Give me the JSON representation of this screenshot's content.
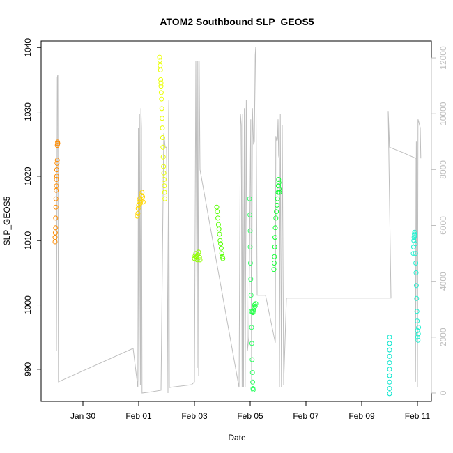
{
  "chart_data": {
    "type": "scatter",
    "title": "ATOM2 Southbound SLP_GEOS5",
    "xlabel": "Date",
    "ylabel": "SLP_GEOS5",
    "xlim": [
      28.5,
      42.5
    ],
    "ylim": [
      985,
      1041
    ],
    "y2lim": [
      -300,
      12600
    ],
    "x_ticks": [
      {
        "value": 30,
        "label": "Jan 30"
      },
      {
        "value": 32,
        "label": "Feb 01"
      },
      {
        "value": 34,
        "label": "Feb 03"
      },
      {
        "value": 36,
        "label": "Feb 05"
      },
      {
        "value": 38,
        "label": "Feb 07"
      },
      {
        "value": 40,
        "label": "Feb 09"
      },
      {
        "value": 42,
        "label": "Feb 11"
      }
    ],
    "y_ticks": [
      990,
      1000,
      1010,
      1020,
      1030,
      1040
    ],
    "y2_ticks": [
      0,
      2000,
      4000,
      6000,
      8000,
      10000,
      12000
    ],
    "colors": {
      "axis": "#000000",
      "altitude_line": "#bebebe",
      "y2_axis": "#bebebe"
    },
    "altitude_profile": [
      [
        29.05,
        1500
      ],
      [
        29.08,
        11300
      ],
      [
        29.1,
        11400
      ],
      [
        29.12,
        400
      ],
      [
        31.8,
        1600
      ],
      [
        31.97,
        200
      ],
      [
        31.99,
        9500
      ],
      [
        32.01,
        400
      ],
      [
        32.03,
        10000
      ],
      [
        32.06,
        300
      ],
      [
        32.08,
        10200
      ],
      [
        32.1,
        9500
      ],
      [
        32.12,
        0
      ],
      [
        32.5,
        50
      ],
      [
        32.8,
        100
      ],
      [
        32.9,
        9300
      ],
      [
        32.95,
        8800
      ],
      [
        33.0,
        8800
      ],
      [
        33.05,
        0
      ],
      [
        33.07,
        9800
      ],
      [
        33.08,
        10500
      ],
      [
        33.1,
        200
      ],
      [
        33.9,
        300
      ],
      [
        34.0,
        400
      ],
      [
        34.05,
        11900
      ],
      [
        34.1,
        900
      ],
      [
        34.12,
        11900
      ],
      [
        34.15,
        600
      ],
      [
        34.17,
        11900
      ],
      [
        34.2,
        8000
      ],
      [
        35.6,
        200
      ],
      [
        35.65,
        10000
      ],
      [
        35.68,
        9600
      ],
      [
        35.71,
        200
      ],
      [
        35.73,
        10000
      ],
      [
        35.76,
        200
      ],
      [
        35.79,
        10200
      ],
      [
        35.82,
        200
      ],
      [
        35.86,
        10500
      ],
      [
        35.9,
        1500
      ],
      [
        35.95,
        2000
      ],
      [
        36.02,
        9800
      ],
      [
        36.05,
        300
      ],
      [
        36.08,
        10200
      ],
      [
        36.12,
        8900
      ],
      [
        36.15,
        9000
      ],
      [
        36.18,
        12100
      ],
      [
        36.2,
        12400
      ],
      [
        36.25,
        3500
      ],
      [
        36.55,
        3500
      ],
      [
        36.9,
        1800
      ],
      [
        36.92,
        9200
      ],
      [
        36.96,
        9000
      ],
      [
        36.98,
        9100
      ],
      [
        37.0,
        9800
      ],
      [
        37.02,
        8500
      ],
      [
        37.04,
        8400
      ],
      [
        37.05,
        200
      ],
      [
        37.08,
        10000
      ],
      [
        37.12,
        200
      ],
      [
        37.15,
        9600
      ],
      [
        37.2,
        300
      ],
      [
        37.3,
        3400
      ],
      [
        41.0,
        3400
      ],
      [
        41.05,
        3400
      ],
      [
        40.95,
        10100
      ],
      [
        41.0,
        8800
      ],
      [
        41.5,
        8600
      ],
      [
        41.95,
        8400
      ],
      [
        41.93,
        400
      ],
      [
        41.96,
        9000
      ],
      [
        42.0,
        200
      ],
      [
        42.02,
        9800
      ],
      [
        42.05,
        9700
      ],
      [
        42.1,
        9500
      ],
      [
        42.12,
        8400
      ]
    ],
    "series": [
      {
        "name": "",
        "color": "#ff8c00",
        "x": [
          29.0,
          29.0,
          29.01,
          29.02,
          29.02,
          29.03,
          29.03,
          29.04,
          29.05,
          29.05,
          29.06,
          29.06,
          29.07,
          29.08,
          29.08,
          29.09,
          29.09,
          29.1
        ],
        "y": [
          1009.8,
          1010.5,
          1011.2,
          1012.0,
          1013.5,
          1015.2,
          1016.5,
          1017.8,
          1018.5,
          1019.5,
          1020.0,
          1021.0,
          1022.0,
          1022.5,
          1024.8,
          1025.0,
          1025.3,
          1025.1
        ]
      },
      {
        "name": "",
        "color": "#ffd700",
        "x": [
          31.95,
          31.97,
          31.98,
          32.0,
          32.02,
          32.04,
          32.06,
          32.08,
          32.1,
          32.12,
          32.14,
          32.16
        ],
        "y": [
          1013.8,
          1014.2,
          1015.0,
          1015.5,
          1016.0,
          1016.5,
          1015.8,
          1016.2,
          1017.0,
          1017.5,
          1016.8,
          1016.0
        ]
      },
      {
        "name": "",
        "color": "#eaff00",
        "x": [
          32.75,
          32.76,
          32.77,
          32.78,
          32.79,
          32.8,
          32.8,
          32.81,
          32.82,
          32.83,
          32.84,
          32.85,
          32.86,
          32.87,
          32.88,
          32.89,
          32.9,
          32.91,
          32.92,
          32.93,
          32.94
        ],
        "y": [
          1038.5,
          1038.0,
          1037.2,
          1036.5,
          1035.0,
          1034.5,
          1034.0,
          1033.0,
          1032.0,
          1030.5,
          1029.0,
          1027.5,
          1026.0,
          1024.5,
          1023.0,
          1021.5,
          1020.5,
          1019.5,
          1018.5,
          1017.5,
          1016.5
        ]
      },
      {
        "name": "",
        "color": "#90ff00",
        "x": [
          34.0,
          34.02,
          34.05,
          34.08,
          34.1,
          34.12,
          34.15,
          34.18,
          34.2
        ],
        "y": [
          1007.2,
          1007.6,
          1008.0,
          1007.5,
          1007.0,
          1007.8,
          1008.2,
          1007.4,
          1007.0
        ]
      },
      {
        "name": "",
        "color": "#55ff00",
        "x": [
          34.8,
          34.82,
          34.84,
          34.86,
          34.88,
          34.9,
          34.92,
          34.94,
          34.96,
          34.98,
          35.0,
          35.02
        ],
        "y": [
          1015.2,
          1014.5,
          1013.5,
          1012.5,
          1011.8,
          1011.0,
          1010.0,
          1009.5,
          1008.8,
          1008.0,
          1007.5,
          1007.2
        ]
      },
      {
        "name": "",
        "color": "#33ff66",
        "x": [
          35.98,
          35.99,
          36.0,
          36.0,
          36.01,
          36.02,
          36.03,
          36.04,
          36.05,
          36.06,
          36.07,
          36.08,
          36.09,
          36.1,
          36.11
        ],
        "y": [
          1016.5,
          1014.0,
          1011.5,
          1009.0,
          1006.5,
          1004.0,
          1001.5,
          999.0,
          996.5,
          994.0,
          991.5,
          989.5,
          988.0,
          987.0,
          986.8
        ]
      },
      {
        "name": "",
        "color": "#22ff44",
        "x": [
          36.08,
          36.1,
          36.12,
          36.14,
          36.16,
          36.18,
          36.2
        ],
        "y": [
          999.0,
          998.8,
          999.2,
          999.5,
          1000.0,
          999.8,
          1000.2
        ]
      },
      {
        "name": "",
        "color": "#11ff33",
        "x": [
          36.85,
          36.86,
          36.87,
          36.88,
          36.89,
          36.9,
          36.92,
          36.94,
          36.96,
          36.98,
          37.0,
          37.01,
          37.02,
          37.03,
          37.04,
          37.05
        ],
        "y": [
          1005.5,
          1006.5,
          1007.5,
          1009.0,
          1010.5,
          1012.0,
          1013.5,
          1014.5,
          1015.5,
          1016.5,
          1017.5,
          1018.5,
          1019.5,
          1019.0,
          1018.0,
          1017.5
        ]
      },
      {
        "name": "",
        "color": "#00e5cc",
        "x": [
          41.0,
          41.0,
          41.0,
          41.0,
          41.0,
          41.0,
          41.0,
          41.0,
          41.0,
          41.0
        ],
        "y": [
          986.2,
          987.0,
          988.0,
          989.0,
          990.0,
          991.0,
          992.0,
          993.0,
          994.0,
          995.0
        ]
      },
      {
        "name": "",
        "color": "#22f0d0",
        "x": [
          41.85,
          41.86,
          41.87,
          41.88,
          41.89,
          41.9,
          41.91,
          41.92,
          41.93,
          41.94,
          41.95,
          41.96,
          41.97,
          41.98,
          41.99,
          42.0,
          42.01,
          42.02,
          42.03,
          42.04
        ],
        "y": [
          1008.0,
          1009.0,
          1010.0,
          1010.5,
          1011.0,
          1011.3,
          1010.8,
          1009.5,
          1008.0,
          1006.5,
          1005.0,
          1003.0,
          1001.0,
          999.0,
          997.5,
          996.0,
          995.0,
          994.5,
          995.5,
          996.5
        ]
      }
    ]
  }
}
